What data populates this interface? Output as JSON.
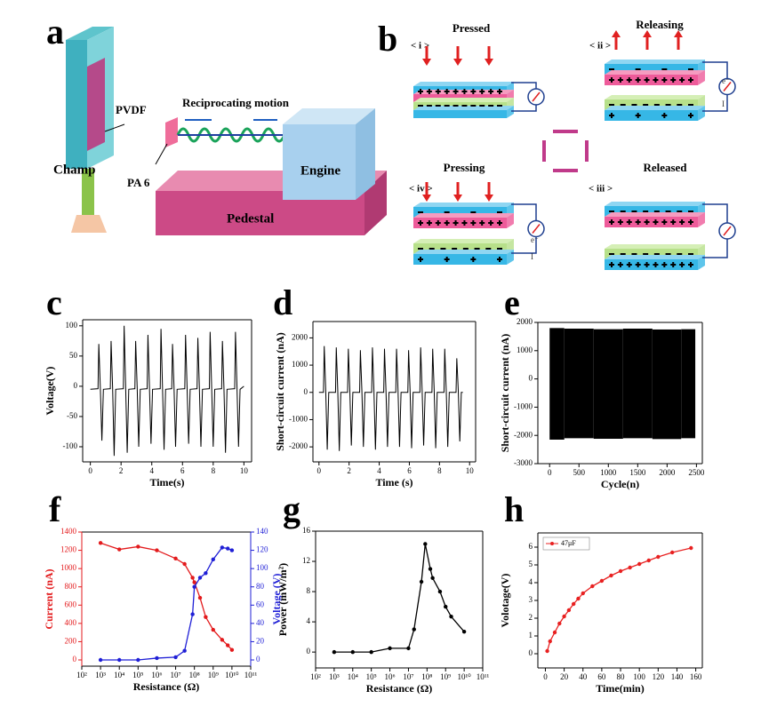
{
  "panel_labels": [
    "a",
    "b",
    "c",
    "d",
    "e",
    "f",
    "g",
    "h"
  ],
  "diagram_a": {
    "labels": [
      "PVDF",
      "Reciprocating motion",
      "Champ",
      "PA 6",
      "Engine",
      "Pedestal"
    ]
  },
  "diagram_b": {
    "states": [
      "Pressed",
      "Releasing",
      "Pressing",
      "Released"
    ],
    "steps": [
      "< i >",
      "< ii >",
      "< iv >",
      "< iii >"
    ],
    "current_label": "I",
    "electron_label": "e⁻"
  },
  "chart_data": [
    {
      "type": "line",
      "xlabel": "Time(s)",
      "ylabel": "Voltage(V)",
      "x": [
        0,
        0.5,
        0.55,
        0.65,
        0.75,
        0.85,
        1.3,
        1.35,
        1.45,
        1.55,
        1.65,
        2.15,
        2.2,
        2.3,
        2.4,
        2.5,
        2.9,
        2.95,
        3.05,
        3.15,
        3.25,
        3.7,
        3.75,
        3.85,
        3.95,
        4.05,
        4.55,
        4.6,
        4.7,
        4.8,
        4.9,
        5.3,
        5.35,
        5.45,
        5.55,
        5.65,
        6.15,
        6.2,
        6.3,
        6.4,
        6.5,
        6.95,
        7.0,
        7.1,
        7.2,
        7.3,
        7.75,
        7.8,
        7.9,
        8.0,
        8.1,
        8.55,
        8.6,
        8.7,
        8.8,
        8.9,
        9.4,
        9.45,
        9.55,
        9.65,
        9.75,
        10
      ],
      "series": [
        {
          "color": "#000000",
          "values": [
            -5,
            -4,
            70,
            -3,
            -90,
            -5,
            -4,
            75,
            -3,
            -115,
            -5,
            -4,
            100,
            -3,
            -110,
            -5,
            -4,
            75,
            -3,
            -100,
            -5,
            -4,
            85,
            -3,
            -95,
            -5,
            -4,
            95,
            -3,
            -105,
            -5,
            -4,
            70,
            -3,
            -100,
            -5,
            -4,
            85,
            -3,
            -95,
            -5,
            -4,
            80,
            -3,
            -100,
            -5,
            -4,
            90,
            -3,
            -100,
            -5,
            -4,
            75,
            -3,
            -110,
            -5,
            -4,
            90,
            -3,
            -100,
            -5,
            0
          ]
        }
      ],
      "xlim": [
        -0.5,
        10.5
      ],
      "xticks": [
        0,
        2,
        4,
        6,
        8,
        10
      ],
      "ylim": [
        -125,
        110
      ],
      "yticks": [
        -100,
        -50,
        0,
        50,
        100
      ]
    },
    {
      "type": "line",
      "xlabel": "Time (s)",
      "ylabel": "Short-circuit current (nA)",
      "x": [
        0,
        0.3,
        0.35,
        0.45,
        0.55,
        0.65,
        1.1,
        1.15,
        1.25,
        1.35,
        1.45,
        1.9,
        1.95,
        2.05,
        2.15,
        2.25,
        2.7,
        2.75,
        2.85,
        2.95,
        3.05,
        3.5,
        3.55,
        3.65,
        3.75,
        3.85,
        4.3,
        4.35,
        4.45,
        4.55,
        4.65,
        5.1,
        5.15,
        5.25,
        5.35,
        5.45,
        5.9,
        5.95,
        6.05,
        6.15,
        6.25,
        6.7,
        6.75,
        6.85,
        6.95,
        7.05,
        7.5,
        7.55,
        7.65,
        7.75,
        7.85,
        8.3,
        8.35,
        8.45,
        8.55,
        8.65,
        9.1,
        9.15,
        9.25,
        9.35,
        9.45,
        9.55
      ],
      "series": [
        {
          "color": "#000000",
          "values": [
            0,
            0,
            1700,
            50,
            -2100,
            0,
            0,
            1650,
            50,
            -2150,
            0,
            0,
            1600,
            50,
            -1950,
            0,
            0,
            1550,
            50,
            -2000,
            0,
            0,
            1650,
            50,
            -2100,
            0,
            0,
            1600,
            50,
            -2000,
            0,
            0,
            1600,
            50,
            -2000,
            0,
            0,
            1550,
            50,
            -2050,
            0,
            0,
            1650,
            50,
            -1950,
            0,
            0,
            1600,
            50,
            -2050,
            0,
            0,
            1600,
            50,
            -2000,
            0,
            0,
            1250,
            50,
            -1800,
            0,
            0
          ]
        }
      ],
      "xlim": [
        -0.4,
        10.4
      ],
      "xticks": [
        0,
        2,
        4,
        6,
        8,
        10
      ],
      "ylim": [
        -2550,
        2600
      ],
      "yticks": [
        -2000,
        -1000,
        0,
        1000,
        2000
      ]
    },
    {
      "type": "range_area",
      "xlabel": "Cycle(n)",
      "ylabel": "Short-circuit current (nA)",
      "x": [
        0,
        500,
        1000,
        1500,
        2000,
        2480
      ],
      "color": "#000000",
      "high": [
        1800,
        1780,
        1760,
        1780,
        1750,
        1760
      ],
      "low": [
        -2150,
        -2100,
        -2120,
        -2100,
        -2130,
        -2100
      ],
      "xlim": [
        -200,
        2600
      ],
      "xticks": [
        0,
        500,
        1000,
        1500,
        2000,
        2500
      ],
      "ylim": [
        -3000,
        2000
      ],
      "yticks": [
        -3000,
        -2000,
        -1000,
        0,
        1000,
        2000
      ]
    },
    {
      "type": "line",
      "xlabel": "Resistance (Ω)",
      "ylabel": "Current (nA)",
      "y2label": "Voltage (V)",
      "xlog": true,
      "markers": true,
      "x": [
        1000,
        10000,
        100000,
        1000000,
        10000000,
        30000000,
        80000000,
        100000000,
        200000000,
        400000000,
        1000000000,
        3000000000,
        6000000000,
        10000000000
      ],
      "series": [
        {
          "color": "#e31a1c",
          "values": [
            1280,
            1210,
            1240,
            1200,
            1110,
            1050,
            900,
            850,
            680,
            470,
            330,
            220,
            160,
            110
          ]
        },
        {
          "color": "#1f1fd6",
          "axis": "y2",
          "values": [
            0,
            0,
            0,
            2,
            3,
            10,
            50,
            80,
            90,
            95,
            110,
            123,
            122,
            120
          ]
        }
      ],
      "xlim": [
        100,
        100000000000
      ],
      "xticks": [
        {
          "value": 100,
          "label": "10²"
        },
        {
          "value": 1000,
          "label": "10³"
        },
        {
          "value": 10000,
          "label": "10⁴"
        },
        {
          "value": 100000,
          "label": "10⁵"
        },
        {
          "value": 1000000,
          "label": "10⁶"
        },
        {
          "value": 10000000,
          "label": "10⁷"
        },
        {
          "value": 100000000,
          "label": "10⁸"
        },
        {
          "value": 1000000000,
          "label": "10⁹"
        },
        {
          "value": 10000000000,
          "label": "10¹⁰"
        },
        {
          "value": 100000000000,
          "label": "10¹¹"
        }
      ],
      "ylim": [
        -68,
        1400
      ],
      "yticks": [
        0,
        200,
        400,
        600,
        800,
        1000,
        1200,
        1400
      ],
      "y2lim": [
        -6.8,
        140
      ],
      "y2ticks": [
        0,
        20,
        40,
        60,
        80,
        100,
        120,
        140
      ]
    },
    {
      "type": "line",
      "xlabel": "Resistance (Ω)",
      "ylabel": "Power (mW/m²)",
      "xlog": true,
      "markers": true,
      "x": [
        1000,
        10000,
        100000,
        1000000,
        10000000,
        20000000,
        50000000,
        80000000,
        150000000,
        200000000,
        500000000,
        1000000000,
        2000000000,
        10000000000
      ],
      "series": [
        {
          "color": "#000000",
          "values": [
            0,
            0,
            0,
            0.5,
            0.5,
            3,
            9.3,
            14.3,
            11,
            9.8,
            8,
            6,
            4.7,
            2.7
          ]
        }
      ],
      "xlim": [
        100,
        100000000000
      ],
      "xticks": [
        {
          "value": 100,
          "label": "10²"
        },
        {
          "value": 1000,
          "label": "10³"
        },
        {
          "value": 10000,
          "label": "10⁴"
        },
        {
          "value": 100000,
          "label": "10⁵"
        },
        {
          "value": 1000000,
          "label": "10⁶"
        },
        {
          "value": 10000000,
          "label": "10⁷"
        },
        {
          "value": 100000000,
          "label": "10⁸"
        },
        {
          "value": 1000000000,
          "label": "10⁹"
        },
        {
          "value": 10000000000,
          "label": "10¹⁰"
        },
        {
          "value": 100000000000,
          "label": "10¹¹"
        }
      ],
      "ylim": [
        -2.1,
        16
      ],
      "yticks": [
        0,
        4,
        8,
        12,
        16
      ]
    },
    {
      "type": "line",
      "xlabel": "Time(min)",
      "ylabel": "Volotage(V)",
      "markers": true,
      "legend": "upper left",
      "x": [
        2,
        5,
        10,
        15,
        20,
        25,
        30,
        35,
        40,
        50,
        60,
        70,
        80,
        90,
        100,
        110,
        120,
        135,
        155
      ],
      "series": [
        {
          "name": "47μF",
          "color": "#e82020",
          "values": [
            0.15,
            0.7,
            1.2,
            1.7,
            2.1,
            2.45,
            2.8,
            3.1,
            3.4,
            3.8,
            4.1,
            4.4,
            4.65,
            4.85,
            5.05,
            5.25,
            5.45,
            5.7,
            5.95
          ]
        }
      ],
      "xlim": [
        -8,
        167
      ],
      "xticks": [
        0,
        20,
        40,
        60,
        80,
        100,
        120,
        140,
        160
      ],
      "ylim": [
        -0.8,
        6.8
      ],
      "yticks": [
        0,
        1,
        2,
        3,
        4,
        5,
        6
      ]
    }
  ]
}
